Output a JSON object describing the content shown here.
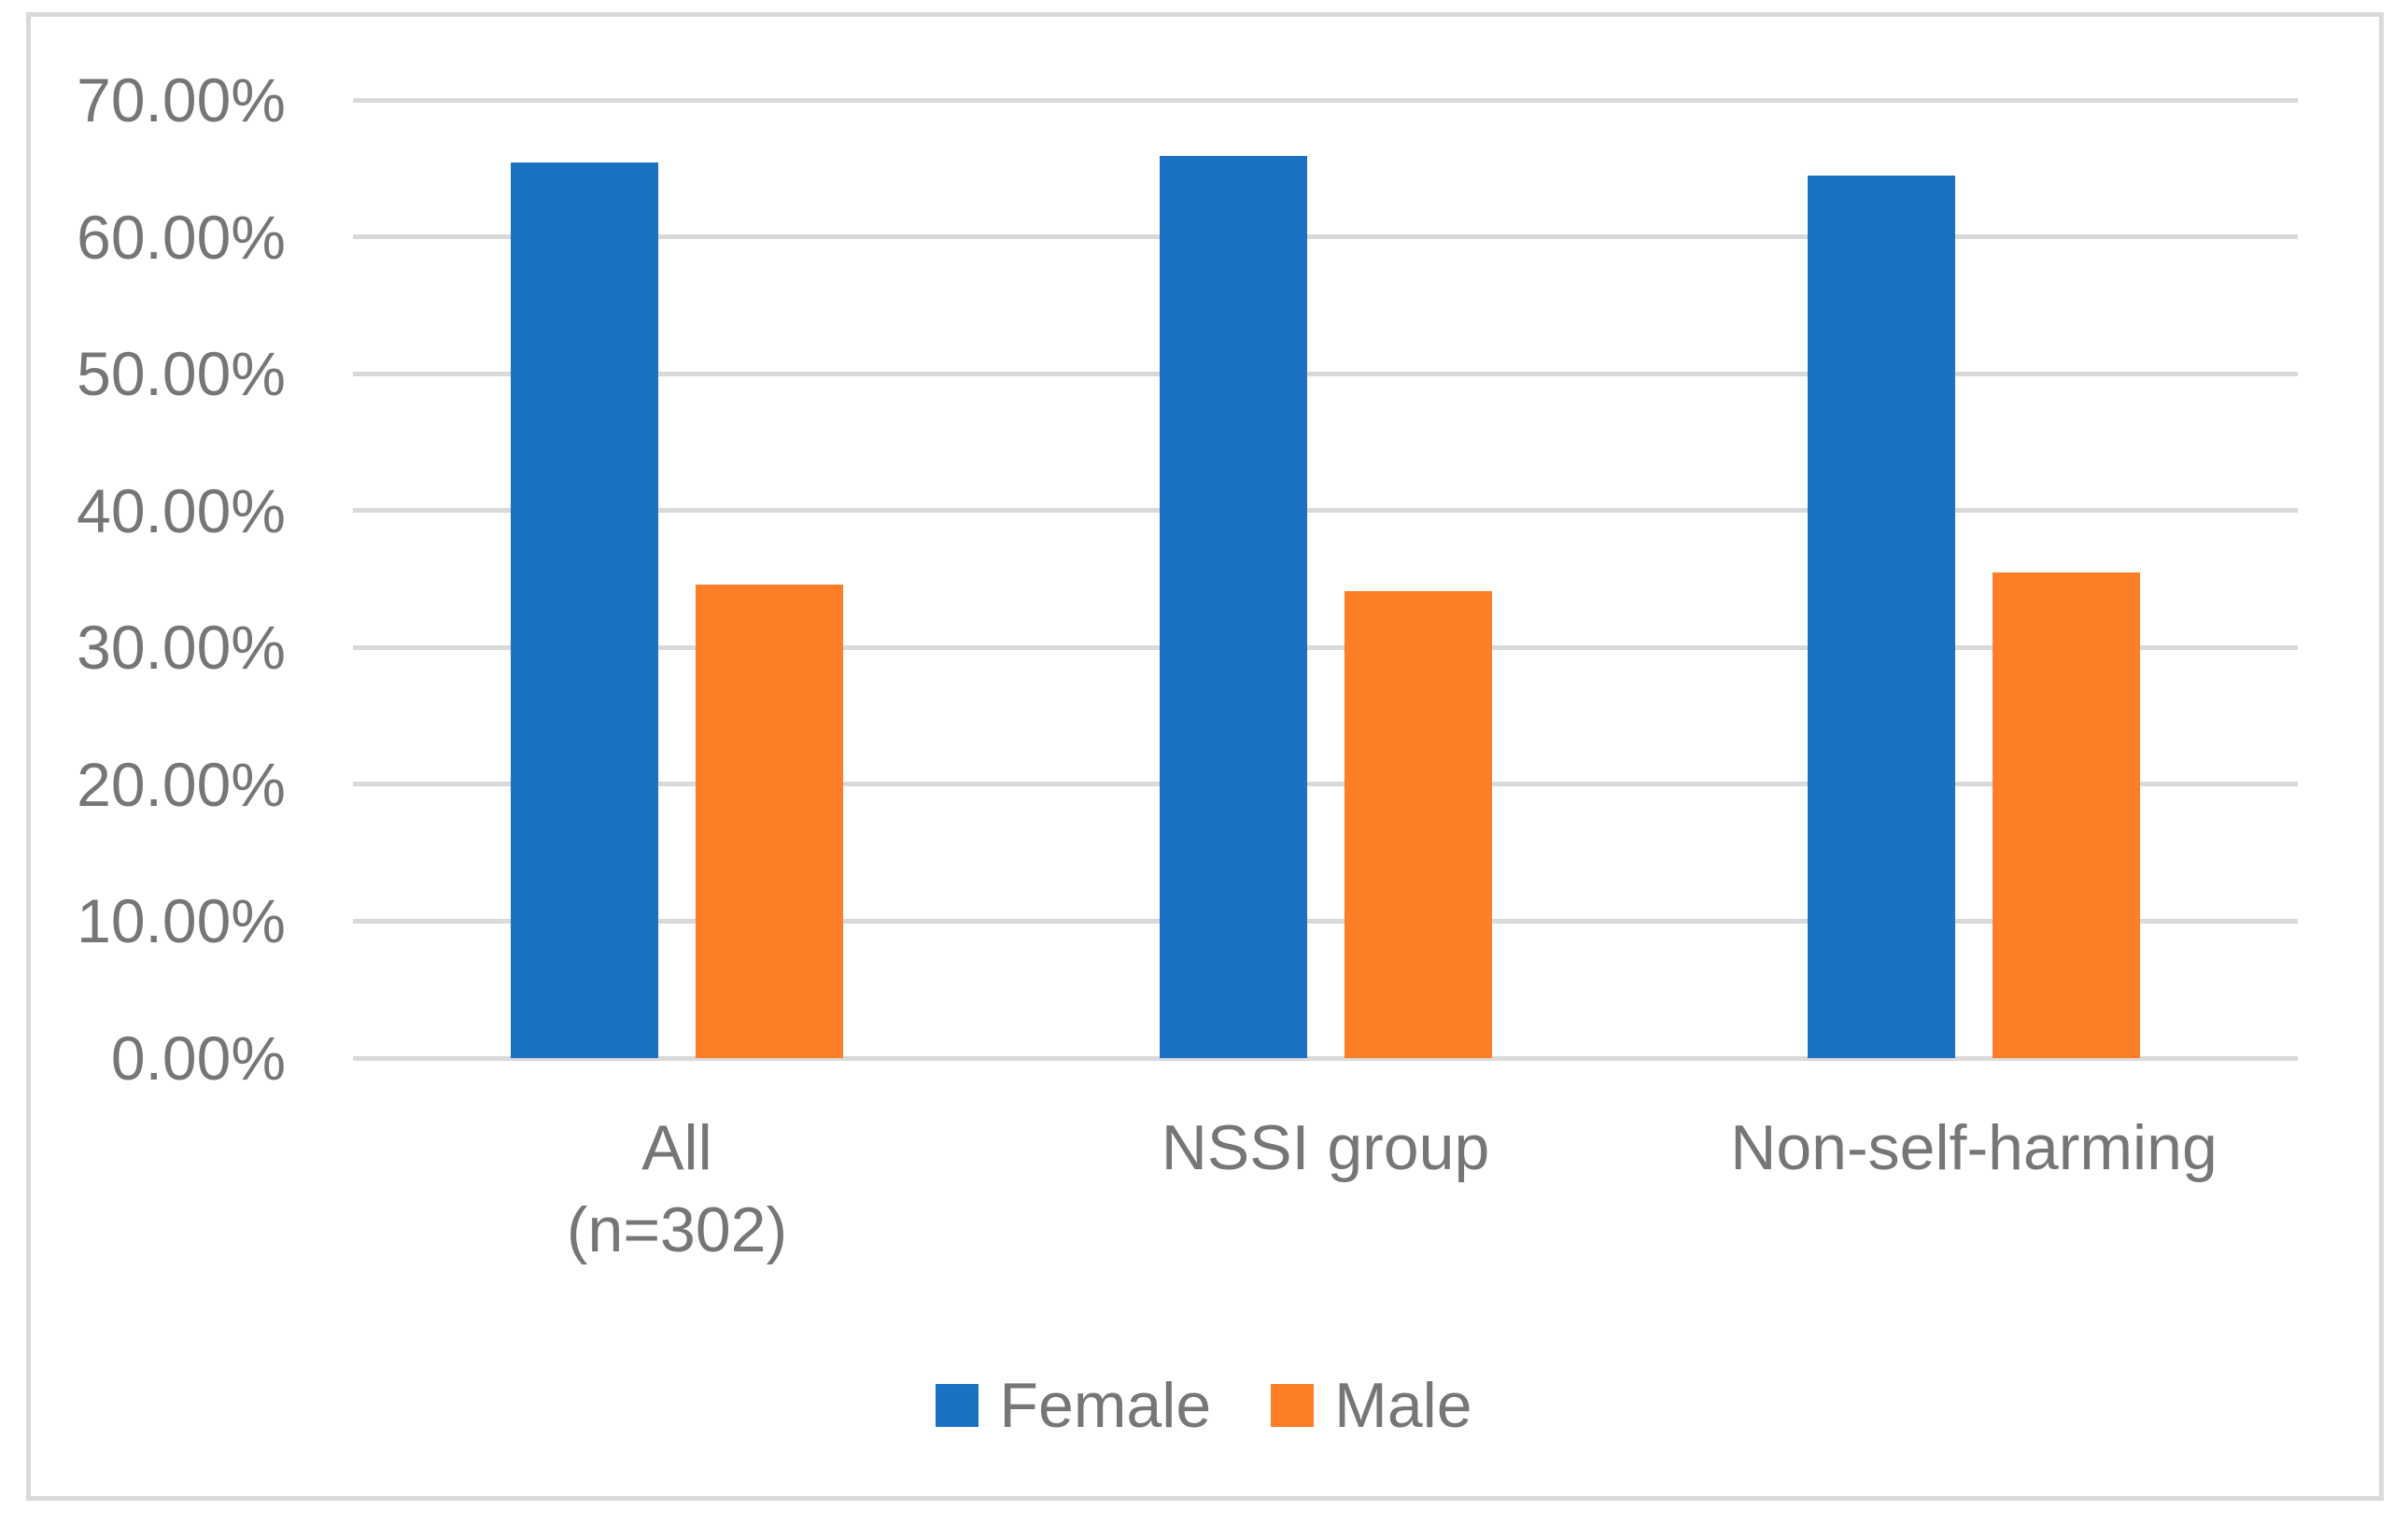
{
  "figure": {
    "background_color": "#ffffff",
    "frame_border_color": "#D9D9D9"
  },
  "chart_data": {
    "type": "bar",
    "title": "",
    "xlabel": "",
    "ylabel": "",
    "categories": [
      "All (n=302)",
      "NSSI group",
      "Non-self-harming"
    ],
    "category_lines": [
      [
        "All",
        "(n=302)"
      ],
      [
        "NSSI group"
      ],
      [
        "Non-self-harming"
      ]
    ],
    "series": [
      {
        "name": "Female",
        "color": "#1B72C4",
        "values": [
          65.4,
          65.9,
          64.5
        ]
      },
      {
        "name": "Male",
        "color": "#FD7E26",
        "values": [
          34.6,
          34.1,
          35.5
        ]
      }
    ],
    "value_unit": "percent",
    "ylim": [
      0,
      70
    ],
    "ytick_step": 10,
    "ytick_labels": [
      "0.00%",
      "10.00%",
      "20.00%",
      "30.00%",
      "40.00%",
      "50.00%",
      "60.00%",
      "70.00%"
    ],
    "grid": true,
    "gridline_color": "#D9D9D9",
    "axis_text_color": "#767676",
    "legend": {
      "position": "bottom",
      "entries": [
        "Female",
        "Male"
      ]
    }
  }
}
